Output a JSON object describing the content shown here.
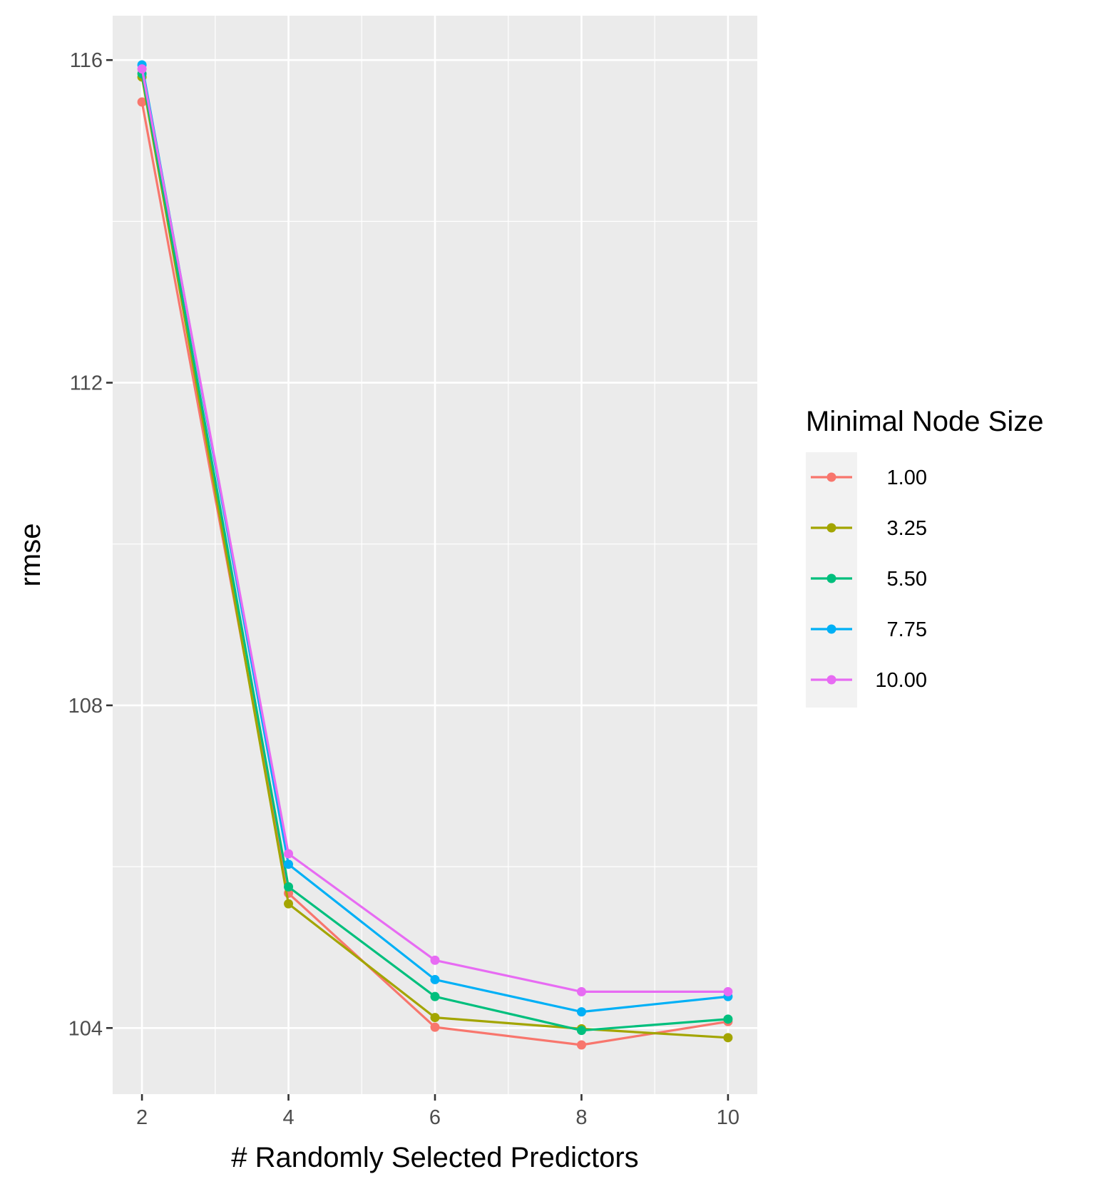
{
  "chart_data": {
    "type": "line",
    "xlabel": "# Randomly Selected Predictors",
    "ylabel": "rmse",
    "x": [
      2,
      4,
      6,
      8,
      10
    ],
    "x_ticks": [
      "2",
      "4",
      "6",
      "8",
      "10"
    ],
    "y_ticks": [
      "104",
      "108",
      "112",
      "116"
    ],
    "xlim": [
      1.6,
      10.4
    ],
    "ylim": [
      103.18,
      116.55
    ],
    "grid": true,
    "legend": {
      "title": "Minimal Node Size",
      "position": "right"
    },
    "series": [
      {
        "name": "1.00",
        "color": "#F8766D",
        "values": [
          115.48,
          105.67,
          104.01,
          103.79,
          104.08
        ]
      },
      {
        "name": "3.25",
        "color": "#A3A500",
        "values": [
          115.79,
          105.54,
          104.13,
          103.99,
          103.88
        ]
      },
      {
        "name": "5.50",
        "color": "#00BF7D",
        "values": [
          115.83,
          105.75,
          104.39,
          103.97,
          104.11
        ]
      },
      {
        "name": "7.75",
        "color": "#00B0F6",
        "values": [
          115.94,
          106.03,
          104.6,
          104.2,
          104.39
        ]
      },
      {
        "name": "10.00",
        "color": "#E76BF3",
        "values": [
          115.89,
          106.16,
          104.84,
          104.45,
          104.45
        ]
      }
    ]
  }
}
